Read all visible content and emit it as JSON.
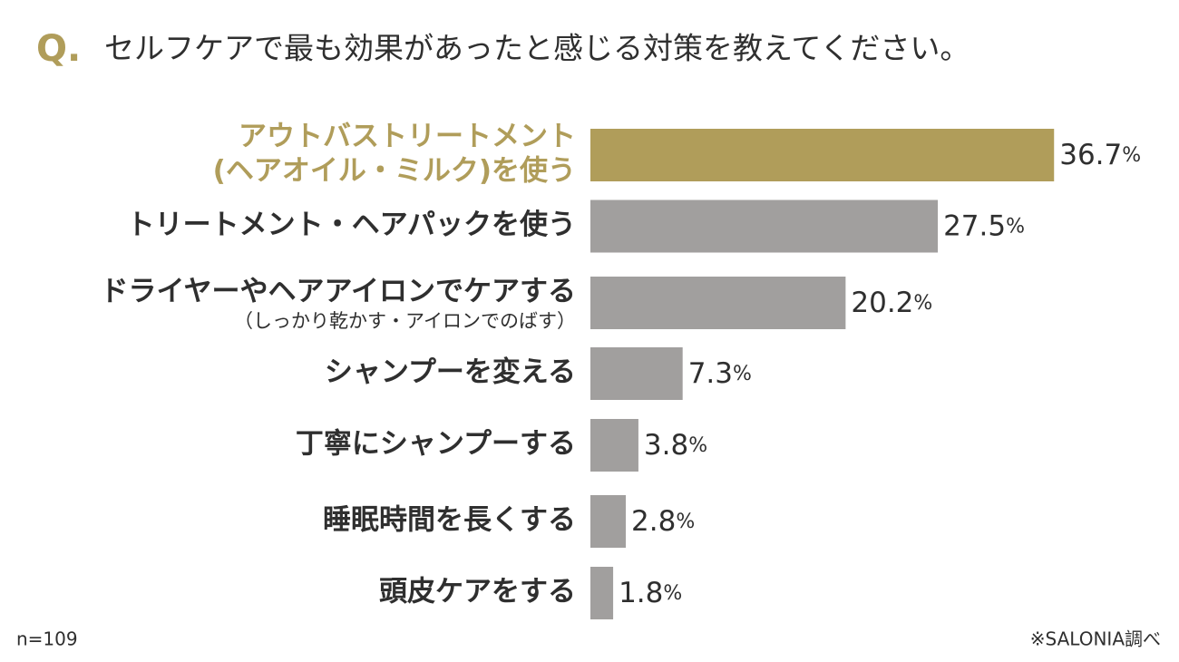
{
  "chart_data": {
    "type": "bar",
    "orientation": "horizontal",
    "title_prefix": "Q.",
    "title": "セルフケアで最も効果があったと感じる対策を教えてください。",
    "categories": [
      [
        "アウトバストリートメント",
        "(ヘアオイル・ミルク)を使う"
      ],
      [
        "トリートメント・ヘアパックを使う"
      ],
      [
        "ドライヤーやヘアアイロンでケアする"
      ],
      [
        "シャンプーを変える"
      ],
      [
        "丁寧にシャンプーする"
      ],
      [
        "睡眠時間を長くする"
      ],
      [
        "頭皮ケアをする"
      ]
    ],
    "category_notes": [
      null,
      null,
      "（しっかり乾かす・アイロンでのばす）",
      null,
      null,
      null,
      null
    ],
    "values": [
      36.7,
      27.5,
      20.2,
      7.3,
      3.8,
      2.8,
      1.8
    ],
    "value_labels": [
      "36.7%",
      "27.5%",
      "20.2%",
      "7.3%",
      "3.8%",
      "2.8%",
      "1.8%"
    ],
    "colors": [
      "#b09d5a",
      "#a19f9e",
      "#a19f9e",
      "#a19f9e",
      "#a19f9e",
      "#a19f9e",
      "#a19f9e"
    ],
    "label_colors": [
      "#b09d5a",
      "#2f2f2f",
      "#2f2f2f",
      "#2f2f2f",
      "#2f2f2f",
      "#2f2f2f",
      "#2f2f2f"
    ],
    "sample_size": "n=109",
    "source": "※SALONIA調べ"
  }
}
